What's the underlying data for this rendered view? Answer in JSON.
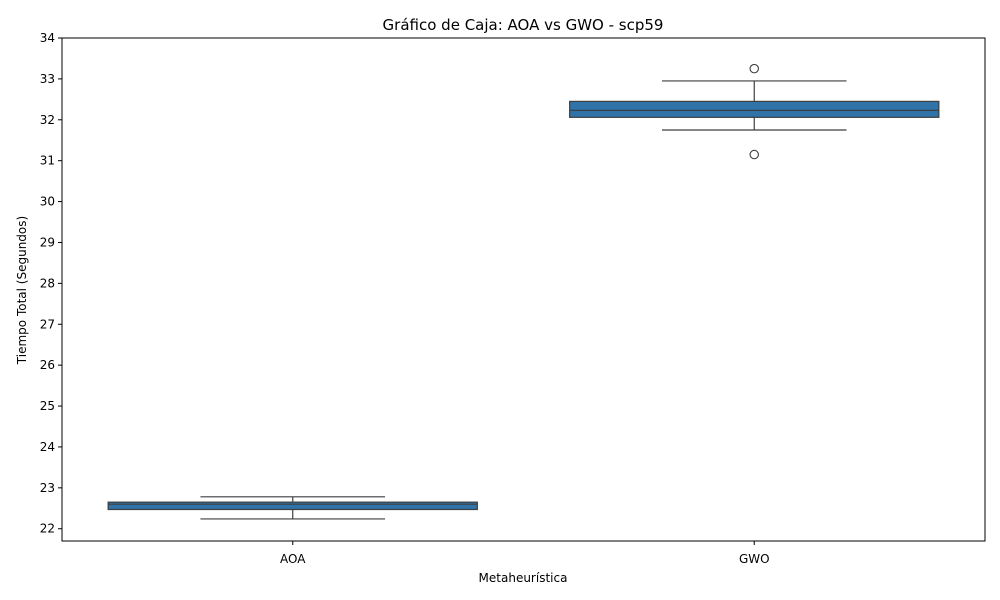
{
  "chart_data": {
    "type": "box",
    "title": "Gráfico de Caja: AOA vs GWO - scp59",
    "xlabel": "Metaheurística",
    "ylabel": "Tiempo Total (Segundos)",
    "ylim": [
      21.7,
      34
    ],
    "yticks": [
      22,
      23,
      24,
      25,
      26,
      27,
      28,
      29,
      30,
      31,
      32,
      33,
      34
    ],
    "categories": [
      "AOA",
      "GWO"
    ],
    "boxes": [
      {
        "category": "AOA",
        "whisker_low": 22.24,
        "q1": 22.47,
        "median": 22.6,
        "q3": 22.65,
        "whisker_high": 22.78,
        "outliers": []
      },
      {
        "category": "GWO",
        "whisker_low": 31.75,
        "q1": 32.06,
        "median": 32.23,
        "q3": 32.45,
        "whisker_high": 32.95,
        "outliers": [
          33.25,
          31.15
        ]
      }
    ],
    "box_color": "#2f73a8",
    "line_color": "#3f3f3f",
    "grid": false,
    "legend": "none"
  }
}
